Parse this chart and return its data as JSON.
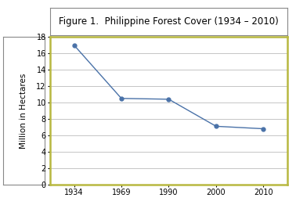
{
  "title": "Figure 1.  Philippine Forest Cover (1934 – 2010)",
  "ylabel": "Million in Hectares",
  "x": [
    1934,
    1969,
    1990,
    2000,
    2010
  ],
  "y": [
    17.0,
    10.5,
    10.4,
    7.1,
    6.8
  ],
  "ylim": [
    0,
    18
  ],
  "yticks": [
    0,
    2,
    4,
    6,
    8,
    10,
    12,
    14,
    16,
    18
  ],
  "xticks": [
    1934,
    1969,
    1990,
    2000,
    2010
  ],
  "xlim_left": 1920,
  "xlim_right": 2022,
  "line_color": "#4a72a8",
  "marker": "o",
  "marker_size": 3.5,
  "line_width": 1.0,
  "bg_color": "#ffffff",
  "plot_bg_color": "#ffffff",
  "outer_box_color": "#b8b840",
  "title_box_edge": "#888888",
  "left_box_edge": "#888888",
  "grid_color": "#bbbbbb",
  "title_fontsize": 8.5,
  "label_fontsize": 7.5,
  "tick_fontsize": 7
}
